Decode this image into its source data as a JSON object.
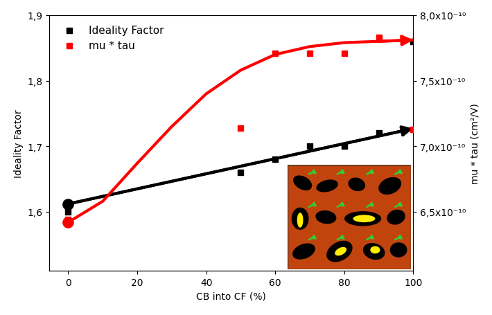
{
  "chart_data": {
    "type": "scatter",
    "x_label": "CB into CF (%)",
    "y_label": "Ideality Factor",
    "y2_label": "mu * tau (cm²/V)",
    "xlim": [
      -5.5,
      100
    ],
    "xticks": [
      0,
      20,
      40,
      60,
      80,
      100
    ],
    "ylim": [
      1.51,
      1.9
    ],
    "yticks": [
      {
        "value": 1.6,
        "label": "1,6"
      },
      {
        "value": 1.7,
        "label": "1,7"
      },
      {
        "value": 1.8,
        "label": "1,8"
      },
      {
        "value": 1.9,
        "label": "1,9"
      }
    ],
    "y2lim": [
      6.05e-10,
      8e-10
    ],
    "y2ticks": [
      {
        "value": 6.5e-10,
        "label": "6,5x10⁻¹⁰"
      },
      {
        "value": 7e-10,
        "label": "7,0x10⁻¹⁰"
      },
      {
        "value": 7.5e-10,
        "label": "7,5x10⁻¹⁰"
      },
      {
        "value": 8e-10,
        "label": "8,0x10⁻¹⁰"
      }
    ],
    "legend": "upper left",
    "series": [
      {
        "name": "Ideality Factor",
        "type": "scatter",
        "color": "#000000",
        "marker": "square",
        "axis": "y",
        "x": [
          0,
          50,
          60,
          70,
          80,
          90,
          100
        ],
        "values": [
          1.6,
          1.66,
          1.68,
          1.7,
          1.7,
          1.72,
          1.86
        ]
      },
      {
        "name": "mu * tau",
        "type": "scatter",
        "color": "#ff0000",
        "marker": "square",
        "axis": "y2",
        "x": [
          0,
          50,
          60,
          70,
          80,
          90,
          100
        ],
        "values": [
          6.44e-10,
          7.14e-10,
          7.71e-10,
          7.71e-10,
          7.71e-10,
          7.83e-10,
          7.13e-10
        ]
      },
      {
        "type": "line",
        "color": "#000000",
        "axis": "y",
        "x": [
          0,
          100
        ],
        "values": [
          1.612,
          1.727
        ]
      },
      {
        "type": "line",
        "color": "#ff0000",
        "axis": "y2",
        "x": [
          0,
          10,
          20,
          30,
          40,
          50,
          60,
          70,
          80,
          90,
          100
        ],
        "values": [
          6.42e-10,
          6.58e-10,
          6.87e-10,
          7.15e-10,
          7.4e-10,
          7.58e-10,
          7.7e-10,
          7.76e-10,
          7.79e-10,
          7.8e-10,
          7.81e-10
        ]
      }
    ]
  }
}
